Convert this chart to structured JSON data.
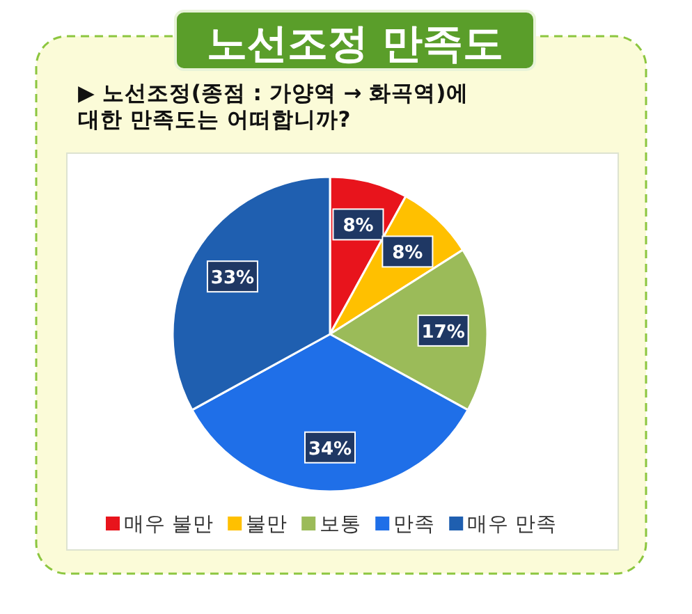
{
  "chart_data": {
    "type": "pie",
    "title": "노선조정 만족도",
    "subtitle": "▶ 노선조정(종점 : 가양역 → 화곡역)에 대한 만족도는 어떠합니까?",
    "categories": [
      "매우 불만",
      "불만",
      "보통",
      "만족",
      "매우 만족"
    ],
    "values": [
      8,
      8,
      17,
      34,
      33
    ],
    "colors": [
      "#e8141c",
      "#ffc000",
      "#9bbb59",
      "#1f6fe8",
      "#1f5fb0"
    ],
    "value_labels": [
      "8%",
      "8%",
      "17%",
      "34%",
      "33%"
    ],
    "legend": "bottom"
  }
}
